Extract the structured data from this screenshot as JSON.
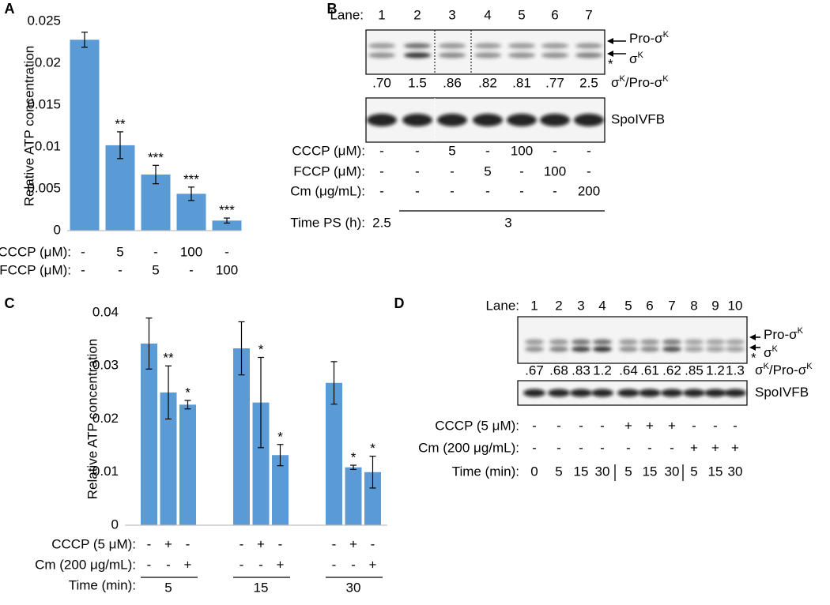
{
  "chart_data": [
    {
      "type": "bar",
      "panel": "A",
      "ylabel": "Relative ATP concentration",
      "ylim": [
        0,
        0.025
      ],
      "yticks": [
        0,
        0.005,
        0.01,
        0.015,
        0.02,
        0.025
      ],
      "color": "#5b9bd5",
      "values": [
        0.0228,
        0.0102,
        0.0067,
        0.0044,
        0.0012
      ],
      "errors": [
        0.0009,
        0.0016,
        0.0011,
        0.0008,
        0.0003
      ],
      "significance": [
        null,
        "**",
        "***",
        "***",
        "***"
      ],
      "rows": [
        {
          "label": "CCCP (μM):",
          "marks": [
            "-",
            "5",
            "-",
            "100",
            "-"
          ]
        },
        {
          "label": "FCCP (μM):",
          "marks": [
            "-",
            "-",
            "5",
            "-",
            "100"
          ]
        }
      ]
    },
    {
      "type": "grouped_bar",
      "panel": "C",
      "ylabel": "Relative ATP concentration",
      "ylim": [
        0,
        0.04
      ],
      "yticks": [
        0,
        0.01,
        0.02,
        0.03,
        0.04
      ],
      "categories": [
        "5",
        "15",
        "30"
      ],
      "xlabel": "Time (min):",
      "series": [
        {
          "color": "#5b9bd5",
          "values": [
            0.0342,
            0.0333,
            0.0268
          ],
          "errors": [
            0.0048,
            0.005,
            0.004
          ],
          "significance": [
            null,
            null,
            null
          ]
        },
        {
          "color": "#5b9bd5",
          "values": [
            0.025,
            0.0231,
            0.0109
          ],
          "errors": [
            0.005,
            0.0085,
            0.0004
          ],
          "significance": [
            "**",
            "*",
            "*"
          ]
        },
        {
          "color": "#5b9bd5",
          "values": [
            0.0227,
            0.0132,
            0.01
          ],
          "errors": [
            0.0008,
            0.002,
            0.003
          ],
          "significance": [
            "*",
            "*",
            "*"
          ]
        }
      ],
      "rows": [
        {
          "label": "CCCP (5 μM):",
          "marks": [
            "-",
            "+",
            "-"
          ]
        },
        {
          "label": "Cm (200 μg/mL):",
          "marks": [
            "-",
            "-",
            "+"
          ]
        }
      ]
    }
  ],
  "blot_b": {
    "panel": "B",
    "lane_label": "Lane:",
    "lanes": [
      "1",
      "2",
      "3",
      "4",
      "5",
      "6",
      "7"
    ],
    "pro_label": [
      {
        "text": "Pro-σ"
      },
      {
        "text": "K",
        "sup": true
      }
    ],
    "mature_label": [
      {
        "text": "σ"
      },
      {
        "text": "K",
        "sup": true
      }
    ],
    "star": "*",
    "ratios": [
      ".70",
      "1.5",
      ".86",
      ".82",
      ".81",
      ".77",
      "2.5"
    ],
    "ratio_label": [
      {
        "text": "σ"
      },
      {
        "text": "K",
        "sup": true
      },
      {
        "text": "/Pro-σ"
      },
      {
        "text": "K",
        "sup": true
      }
    ],
    "loading_label": "SpoIVFB",
    "rows": [
      {
        "label": "CCCP (μM):",
        "marks": [
          "-",
          "-",
          "5",
          "-",
          "100",
          "-",
          "-"
        ]
      },
      {
        "label": "FCCP (μM):",
        "marks": [
          "-",
          "-",
          "-",
          "5",
          "-",
          "100",
          "-"
        ]
      },
      {
        "label": "Cm (μg/mL):",
        "marks": [
          "-",
          "-",
          "-",
          "-",
          "-",
          "-",
          "200"
        ]
      }
    ],
    "time_label": "Time PS (h):",
    "times": [
      "2.5",
      "3"
    ]
  },
  "blot_d": {
    "panel": "D",
    "lane_label": "Lane:",
    "lanes": [
      "1",
      "2",
      "3",
      "4",
      "5",
      "6",
      "7",
      "8",
      "9",
      "10"
    ],
    "pro_label": [
      {
        "text": "Pro-σ"
      },
      {
        "text": "K",
        "sup": true
      }
    ],
    "mature_label": [
      {
        "text": "σ"
      },
      {
        "text": "K",
        "sup": true
      }
    ],
    "star": "*",
    "ratios": [
      ".67",
      ".68",
      ".83",
      "1.2",
      ".64",
      ".61",
      ".62",
      ".85",
      "1.2",
      "1.3"
    ],
    "ratio_label": [
      {
        "text": "σ"
      },
      {
        "text": "K",
        "sup": true
      },
      {
        "text": "/Pro-σ"
      },
      {
        "text": "K",
        "sup": true
      }
    ],
    "loading_label": "SpoIVFB",
    "rows": [
      {
        "label": "CCCP (5 μM):",
        "marks": [
          "-",
          "-",
          "-",
          "-",
          "+",
          "+",
          "+",
          "-",
          "-",
          "-"
        ]
      },
      {
        "label": "Cm (200 μg/mL):",
        "marks": [
          "-",
          "-",
          "-",
          "-",
          "-",
          "-",
          "-",
          "+",
          "+",
          "+"
        ]
      },
      {
        "label": "Time (min):",
        "marks": [
          "0",
          "5",
          "15",
          "30",
          "5",
          "15",
          "30",
          "5",
          "15",
          "30"
        ]
      }
    ]
  }
}
